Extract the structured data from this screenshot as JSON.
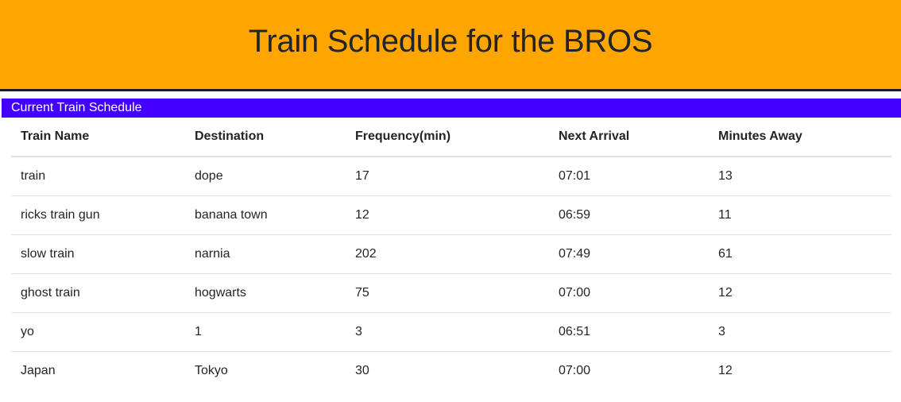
{
  "header": {
    "title": "Train Schedule for the BROS"
  },
  "schedule": {
    "heading": "Current Train Schedule",
    "columns": [
      "Train Name",
      "Destination",
      "Frequency(min)",
      "Next Arrival",
      "Minutes Away"
    ],
    "rows": [
      [
        "train",
        "dope",
        "17",
        "07:01",
        "13"
      ],
      [
        "ricks train gun",
        "banana town",
        "12",
        "06:59",
        "11"
      ],
      [
        "slow train",
        "narnia",
        "202",
        "07:49",
        "61"
      ],
      [
        "ghost train",
        "hogwarts",
        "75",
        "07:00",
        "12"
      ],
      [
        "yo",
        "1",
        "3",
        "06:51",
        "3"
      ],
      [
        "Japan",
        "Tokyo",
        "30",
        "07:00",
        "12"
      ]
    ]
  },
  "colors": {
    "header_bg": "#ffa500",
    "panel_heading_bg": "#4400ff",
    "text": "#212529"
  }
}
